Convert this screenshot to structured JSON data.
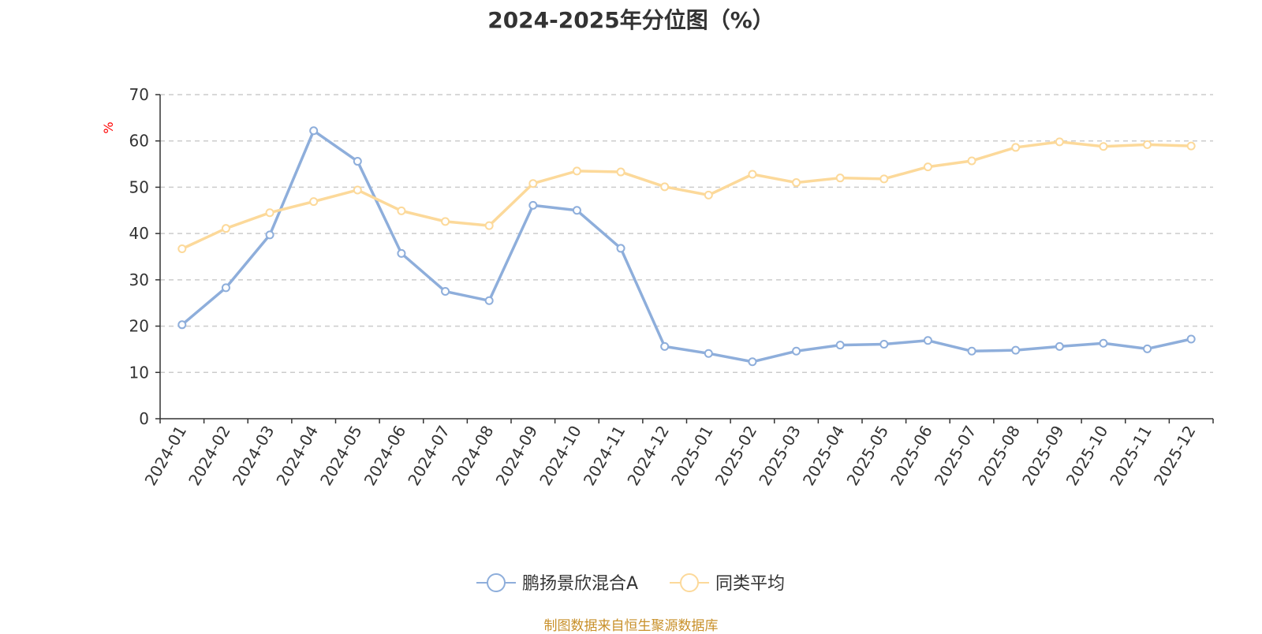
{
  "chart_data": {
    "type": "line",
    "title": "2024-2025年分位图（%）",
    "ylabel": "%",
    "ylim": [
      0,
      70
    ],
    "yticks": [
      0,
      10,
      20,
      30,
      40,
      50,
      60,
      70
    ],
    "grid": true,
    "legend_position": "bottom",
    "categories": [
      "2024-01",
      "2024-02",
      "2024-03",
      "2024-04",
      "2024-05",
      "2024-06",
      "2024-07",
      "2024-08",
      "2024-09",
      "2024-10",
      "2024-11",
      "2024-12",
      "2025-01",
      "2025-02",
      "2025-03",
      "2025-04",
      "2025-05",
      "2025-06",
      "2025-07",
      "2025-08",
      "2025-09",
      "2025-10",
      "2025-11",
      "2025-12"
    ],
    "series": [
      {
        "name": "鹏扬景欣混合A",
        "color": "#8eaedb",
        "values": [
          20.3,
          28.3,
          39.7,
          62.2,
          55.6,
          35.7,
          27.5,
          25.5,
          46.1,
          45.0,
          36.8,
          15.6,
          14.1,
          12.3,
          14.6,
          15.9,
          16.1,
          16.9,
          14.6,
          14.8,
          15.6,
          16.3,
          15.1,
          17.2
        ]
      },
      {
        "name": "同类平均",
        "color": "#fcd99a",
        "values": [
          36.7,
          41.1,
          44.5,
          46.9,
          49.4,
          44.9,
          42.6,
          41.7,
          50.8,
          53.5,
          53.3,
          50.1,
          48.3,
          52.8,
          51.0,
          52.0,
          51.8,
          54.4,
          55.7,
          58.6,
          59.8,
          58.8,
          59.2,
          58.9
        ]
      }
    ]
  },
  "source_text": "制图数据来自恒生聚源数据库"
}
